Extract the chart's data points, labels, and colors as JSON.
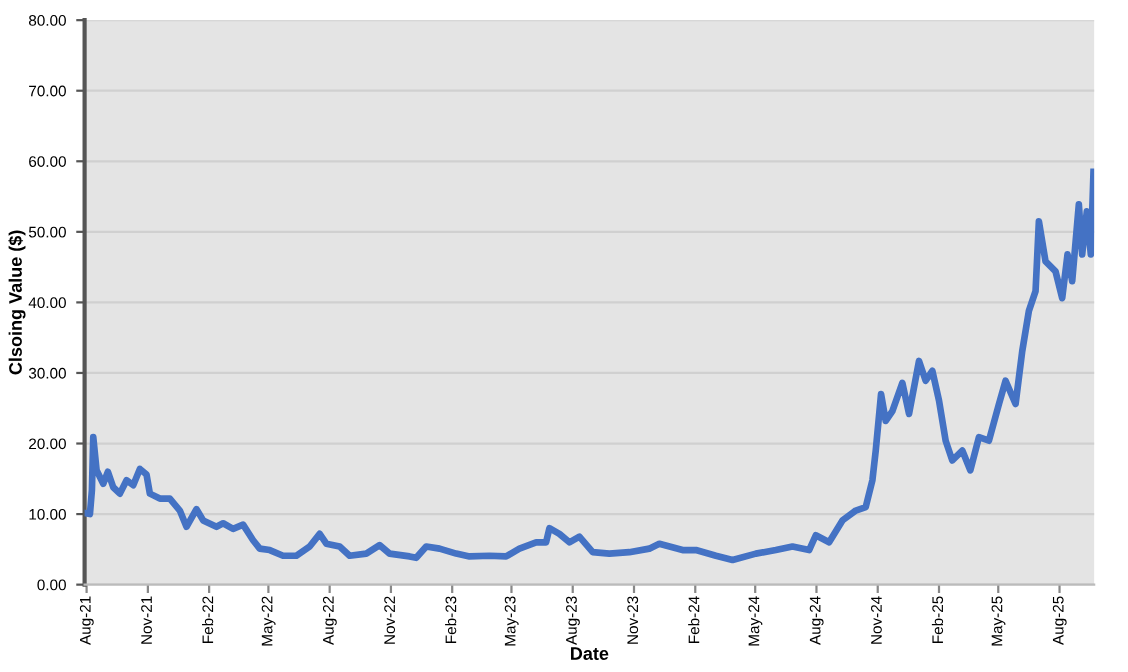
{
  "chart_data": {
    "type": "line",
    "xlabel": "Date",
    "ylabel": "Clsoing Value ($)",
    "grid": "y",
    "marker": "none",
    "line_style": "solid",
    "xlim": [
      "2021-07-29",
      "2025-09-22"
    ],
    "ylim": [
      0,
      80
    ],
    "yticks": [
      {
        "value": 0,
        "label": "0.00"
      },
      {
        "value": 10,
        "label": "10.00"
      },
      {
        "value": 20,
        "label": "20.00"
      },
      {
        "value": 30,
        "label": "30.00"
      },
      {
        "value": 40,
        "label": "40.00"
      },
      {
        "value": 50,
        "label": "50.00"
      },
      {
        "value": 60,
        "label": "60.00"
      },
      {
        "value": 70,
        "label": "70.00"
      },
      {
        "value": 80,
        "label": "80.00"
      }
    ],
    "xticks": [
      {
        "value": "2021-08-01",
        "label": "Aug-21"
      },
      {
        "value": "2021-11-01",
        "label": "Nov-21"
      },
      {
        "value": "2022-02-01",
        "label": "Feb-22"
      },
      {
        "value": "2022-05-01",
        "label": "May-22"
      },
      {
        "value": "2022-08-01",
        "label": "Aug-22"
      },
      {
        "value": "2022-11-01",
        "label": "Nov-22"
      },
      {
        "value": "2023-02-01",
        "label": "Feb-23"
      },
      {
        "value": "2023-05-01",
        "label": "May-23"
      },
      {
        "value": "2023-08-01",
        "label": "Aug-23"
      },
      {
        "value": "2023-11-01",
        "label": "Nov-23"
      },
      {
        "value": "2024-02-01",
        "label": "Feb-24"
      },
      {
        "value": "2024-05-01",
        "label": "May-24"
      },
      {
        "value": "2024-08-01",
        "label": "Aug-24"
      },
      {
        "value": "2024-11-01",
        "label": "Nov-24"
      },
      {
        "value": "2025-02-01",
        "label": "Feb-25"
      },
      {
        "value": "2025-05-01",
        "label": "May-25"
      },
      {
        "value": "2025-08-01",
        "label": "Aug-25"
      }
    ],
    "x": [
      "2021-08-01",
      "2021-08-06",
      "2021-08-09",
      "2021-08-11",
      "2021-08-16",
      "2021-08-26",
      "2021-09-02",
      "2021-09-10",
      "2021-09-20",
      "2021-09-30",
      "2021-10-10",
      "2021-10-20",
      "2021-10-30",
      "2021-11-04",
      "2021-11-19",
      "2021-12-04",
      "2021-12-19",
      "2021-12-29",
      "2022-01-13",
      "2022-01-23",
      "2022-02-12",
      "2022-02-22",
      "2022-03-09",
      "2022-03-24",
      "2022-04-08",
      "2022-04-18",
      "2022-05-03",
      "2022-05-23",
      "2022-06-12",
      "2022-07-02",
      "2022-07-17",
      "2022-07-27",
      "2022-08-16",
      "2022-08-31",
      "2022-09-25",
      "2022-10-15",
      "2022-10-30",
      "2022-11-29",
      "2022-12-09",
      "2022-12-24",
      "2023-01-13",
      "2023-02-07",
      "2023-02-27",
      "2023-03-29",
      "2023-04-23",
      "2023-05-13",
      "2023-06-07",
      "2023-06-22",
      "2023-06-27",
      "2023-07-12",
      "2023-07-27",
      "2023-08-11",
      "2023-08-31",
      "2023-09-25",
      "2023-10-25",
      "2023-11-24",
      "2023-12-09",
      "2024-01-13",
      "2024-02-02",
      "2024-03-03",
      "2024-03-28",
      "2024-05-02",
      "2024-06-01",
      "2024-06-26",
      "2024-07-21",
      "2024-07-31",
      "2024-08-20",
      "2024-09-09",
      "2024-09-29",
      "2024-10-14",
      "2024-10-24",
      "2024-10-29",
      "2024-11-06",
      "2024-11-13",
      "2024-11-23",
      "2024-12-08",
      "2024-12-18",
      "2025-01-02",
      "2025-01-12",
      "2025-01-22",
      "2025-02-01",
      "2025-02-11",
      "2025-02-21",
      "2025-03-08",
      "2025-03-20",
      "2025-04-02",
      "2025-04-17",
      "2025-05-02",
      "2025-05-12",
      "2025-05-27",
      "2025-06-06",
      "2025-06-16",
      "2025-06-26",
      "2025-07-01",
      "2025-07-11",
      "2025-07-26",
      "2025-08-05",
      "2025-08-13",
      "2025-08-20",
      "2025-08-30",
      "2025-09-04",
      "2025-09-11",
      "2025-09-17",
      "2025-09-21"
    ],
    "series": [
      {
        "color": "#4472c4",
        "values": [
          10.1,
          10,
          13.4,
          20.9,
          16.2,
          14.3,
          16,
          13.8,
          12.9,
          14.8,
          14.1,
          16.4,
          15.6,
          12.9,
          12.2,
          12.2,
          10.5,
          8.2,
          10.7,
          9.1,
          8.2,
          8.7,
          7.9,
          8.5,
          6.3,
          5.1,
          4.9,
          4.1,
          4.1,
          5.4,
          7.2,
          5.8,
          5.4,
          4.1,
          4.4,
          5.6,
          4.4,
          4.0,
          3.8,
          5.4,
          5.1,
          4.4,
          4.0,
          4.1,
          4.0,
          5.1,
          6.0,
          6.0,
          8.0,
          7.2,
          6.0,
          6.8,
          4.6,
          4.4,
          4.6,
          5.1,
          5.8,
          4.9,
          4.9,
          4.1,
          3.5,
          4.4,
          4.9,
          5.4,
          4.9,
          7.0,
          6.0,
          9.1,
          10.5,
          11.0,
          14.8,
          19.0,
          27.0,
          23.2,
          24.6,
          28.6,
          24.2,
          31.7,
          28.9,
          30.3,
          26.1,
          20.4,
          17.6,
          19.0,
          16.2,
          20.9,
          20.4,
          25.6,
          28.9,
          25.6,
          33.1,
          38.8,
          41.6,
          51.5,
          45.8,
          44.4,
          40.6,
          46.8,
          43.0,
          53.9,
          46.8,
          52.9,
          46.8,
          58.5
        ]
      }
    ]
  }
}
